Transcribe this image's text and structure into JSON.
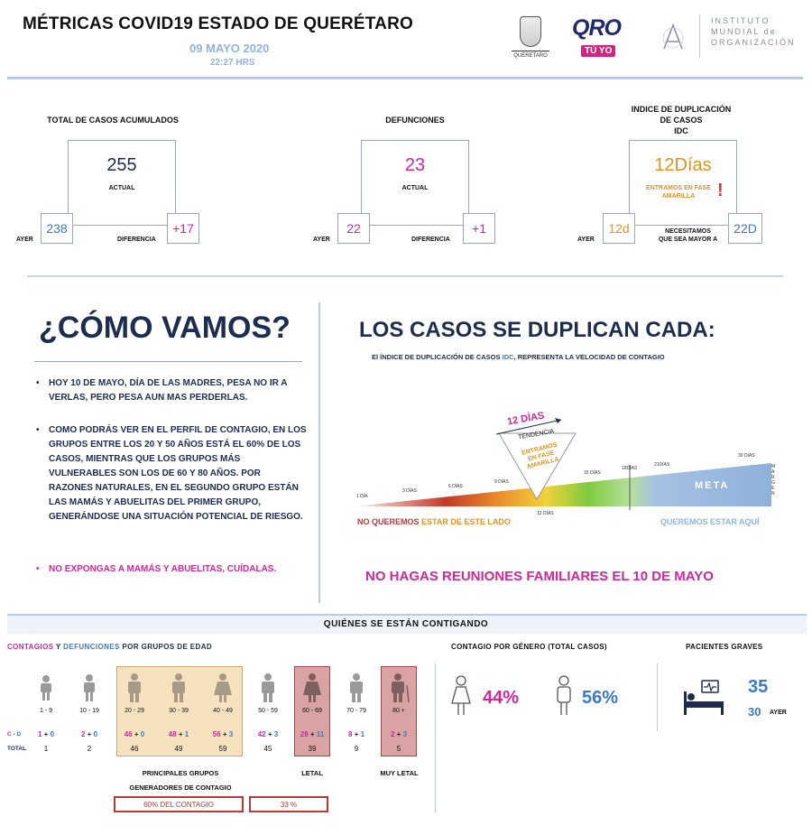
{
  "header": {
    "title": "MÉTRICAS COVID19 ESTADO DE QUERÉTARO",
    "date": "09 MAYO 2020",
    "time": "22:27 HRS",
    "logo_seal_caption": "QUERETARO",
    "logo_qro": "QRO",
    "logo_tuyo": "TÚ YO",
    "imo_lines": [
      "INSTITUTO",
      "MUNDIAL de",
      "ORGANIZACIÓN"
    ]
  },
  "kpis": {
    "casos": {
      "title": "TOTAL DE CASOS ACUMULADOS",
      "actual": "255",
      "actual_lbl": "ACTUAL",
      "ayer_lbl": "AYER",
      "ayer": "238",
      "dif_lbl": "DIFERENCIA",
      "dif": "+17"
    },
    "defunciones": {
      "title": "DEFUNCIONES",
      "actual": "23",
      "actual_lbl": "ACTUAL",
      "ayer_lbl": "AYER",
      "ayer": "22",
      "dif_lbl": "DIFERENCIA",
      "dif": "+1"
    },
    "idc": {
      "title_1": "INDICE DE DUPLICACIÓN",
      "title_2": "DE CASOS",
      "title_3": "IDC",
      "actual": "12Días",
      "fase_1": "ENTRAMOS EN FASE",
      "fase_2": "AMARILLA",
      "warn": "!",
      "ayer_lbl": "AYER",
      "ayer": "12d",
      "need_1": "NECESITAMOS",
      "need_2": "QUE SEA MAYOR A",
      "target": "22D"
    }
  },
  "como": {
    "heading": "¿CÓMO VAMOS?",
    "bullets": [
      {
        "text": "HOY 10 DE MAYO, DÍA DE LAS MADRES, PESA NO IR A VERLAS, PERO PESA AUN MAS PERDERLAS."
      },
      {
        "text": "COMO PODRÁS VER EN EL PERFIL DE CONTAGIO, EN LOS GRUPOS ENTRE LOS 20 Y 50 AÑOS ESTÁ EL 60% DE LOS CASOS, MIENTRAS QUE LOS GRUPOS MÁS VULNERABLES SON LOS DE 60 Y 80 AÑOS. POR RAZONES NATURALES, EN EL SEGUNDO GRUPO ESTÁN LAS MAMÁS Y ABUELITAS DEL PRIMER GRUPO, GENERÁNDOSE UNA SITUACIÓN POTENCIAL DE RIESGO."
      },
      {
        "text": "NO EXPONGAS A MAMÁS Y ABUELITAS, CUÍDALAS."
      }
    ],
    "bullet_char": "•"
  },
  "duplican": {
    "heading": "LOS CASOS SE DUPLICAN CADA:",
    "desc_pre": "El ÍNDICE DE DUPLICACIÓN DE CASOS ",
    "desc_idc": "IDC",
    "desc_post": ", REPRESENTA LA VELOCIDAD DE CONTAGIO",
    "doce_dias": "12 DÍAS",
    "tendencia": "TENDENCIA",
    "entramos": [
      "ENTRAMOS",
      "EN FASE",
      "AMARILLA"
    ],
    "marks": [
      "1 DÍA",
      "3 DÍAS",
      "6 DÍAS",
      "9 DÍAS",
      "12 DÍAS",
      "15 DÍAS",
      "18DÍAS",
      "21DÍAS",
      "30 DÍAS"
    ],
    "meta": "META",
    "margen": "MARGEN",
    "no_queremos_1": "NO QUEREMOS ",
    "no_queremos_2": "ESTAR DE ESTE LADO",
    "queremos": "QUEREMOS ESTAR AQUÍ",
    "no_reuniones": "NO HAGAS REUNIONES FAMILIARES EL 10 DE MAYO"
  },
  "contagio": {
    "band_title": "QUIÉNES SE ESTÁN CONTIGANDO",
    "hdr_contagios": "CONTAGIOS",
    "hdr_y": " Y ",
    "hdr_defunciones": "DEFUNCIONES",
    "hdr_rest": " POR GRUPOS DE EDAD",
    "row_cd_c": "C",
    "row_cd_sep": " - ",
    "row_cd_d": "D",
    "row_total": "TOTAL",
    "groups": [
      {
        "age": "1 - 9",
        "c": "1",
        "d": "0",
        "total": "1"
      },
      {
        "age": "10 - 19",
        "c": "2",
        "d": "0",
        "total": "2"
      },
      {
        "age": "20 - 29",
        "c": "46",
        "d": "0",
        "total": "46"
      },
      {
        "age": "30 - 39",
        "c": "48",
        "d": "1",
        "total": "49"
      },
      {
        "age": "40 - 49",
        "c": "56",
        "d": "3",
        "total": "59"
      },
      {
        "age": "50 - 59",
        "c": "42",
        "d": "3",
        "total": "45"
      },
      {
        "age": "60 - 69",
        "c": "28",
        "d": "11",
        "total": "39"
      },
      {
        "age": "70 - 79",
        "c": "8",
        "d": "1",
        "total": "9"
      },
      {
        "age": "80 +",
        "c": "2",
        "d": "3",
        "total": "5"
      }
    ],
    "lbl_principales_1": "PRINCIPALES GRUPOS",
    "lbl_principales_2": "GENERADORES DE CONTAGIO",
    "lbl_letal": "LETAL",
    "lbl_muy_letal": "MUY LETAL",
    "box_60": "60% DEL CONTAGIO",
    "box_33": "33 %"
  },
  "genero": {
    "title": "CONTAGIO POR GÉNERO (TOTAL CASOS)",
    "mujeres": "44%",
    "hombres": "56%"
  },
  "graves": {
    "title": "PACIENTES GRAVES",
    "actual": "35",
    "ayer": "30",
    "ayer_lbl": "AYER"
  },
  "colors": {
    "pink": "#d0279d",
    "blue": "#3d79c9",
    "orange": "#e0931e",
    "navy": "#1d2d50"
  }
}
